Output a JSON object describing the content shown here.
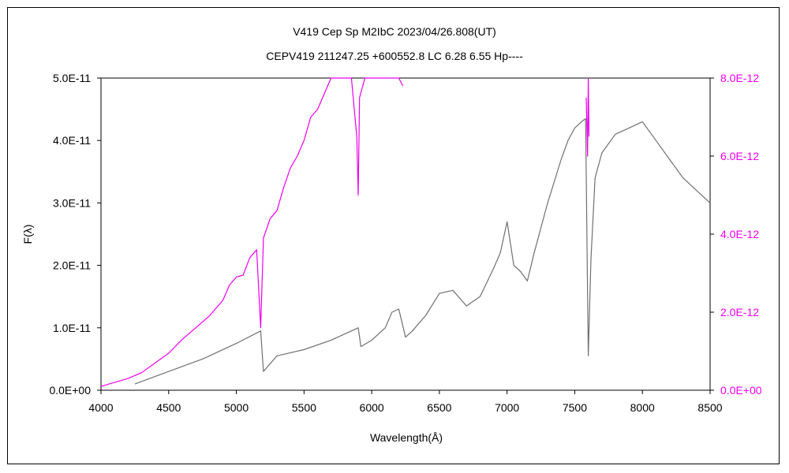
{
  "chart_data": {
    "type": "line",
    "title": "V419 Cep   Sp M2IbC   2023/04/26.808(UT)",
    "subtitle": "CEPV419 211247.25 +600552.8 LC 6.28 6.55 Hp----",
    "xlabel": "Wavelength(Å)",
    "ylabel": "F(λ)",
    "xlim": [
      4000,
      8500
    ],
    "ylim_left": [
      0,
      5e-11
    ],
    "ylim_right": [
      0,
      8e-12
    ],
    "x_ticks": [
      "4000",
      "4500",
      "5000",
      "5500",
      "6000",
      "6500",
      "7000",
      "7500",
      "8000",
      "8500"
    ],
    "y_left_ticks": [
      "0.0E+00",
      "1.0E-11",
      "2.0E-11",
      "3.0E-11",
      "4.0E-11",
      "5.0E-11"
    ],
    "y_right_ticks": [
      "0.0E+00",
      "2.0E-12",
      "4.0E-12",
      "6.0E-12",
      "8.0E-12"
    ],
    "grid": false,
    "legend": "none",
    "colors": {
      "series_left": "#707070",
      "series_right": "#ee00ee",
      "right_axis": "#ee00ee"
    },
    "series": [
      {
        "axis": "left",
        "color": "#707070",
        "x": [
          4250,
          4500,
          4750,
          5000,
          5180,
          5200,
          5300,
          5500,
          5700,
          5800,
          5900,
          5920,
          6000,
          6100,
          6150,
          6200,
          6250,
          6300,
          6400,
          6500,
          6600,
          6700,
          6800,
          6900,
          6950,
          7000,
          7050,
          7100,
          7150,
          7200,
          7300,
          7400,
          7450,
          7500,
          7550,
          7580,
          7600,
          7620,
          7650,
          7700,
          7800,
          7900,
          8000,
          8100,
          8200,
          8300,
          8400,
          8500
        ],
        "y": [
          1e-12,
          3e-12,
          5e-12,
          7.5e-12,
          9.5e-12,
          3e-12,
          5.5e-12,
          6.5e-12,
          8e-12,
          9e-12,
          1e-11,
          7e-12,
          8e-12,
          1e-11,
          1.25e-11,
          1.3e-11,
          8.5e-12,
          9.5e-12,
          1.2e-11,
          1.55e-11,
          1.6e-11,
          1.35e-11,
          1.5e-11,
          1.95e-11,
          2.2e-11,
          2.7e-11,
          2e-11,
          1.9e-11,
          1.75e-11,
          2.2e-11,
          3e-11,
          3.7e-11,
          4e-11,
          4.2e-11,
          4.3e-11,
          4.35e-11,
          5.5e-12,
          2.1e-11,
          3.4e-11,
          3.8e-11,
          4.1e-11,
          4.2e-11,
          4.3e-11,
          4e-11,
          3.7e-11,
          3.4e-11,
          3.2e-11,
          3e-11
        ]
      },
      {
        "axis": "right",
        "color": "#ee00ee",
        "x": [
          4000,
          4100,
          4200,
          4300,
          4400,
          4500,
          4600,
          4700,
          4800,
          4900,
          4950,
          5000,
          5050,
          5100,
          5150,
          5180,
          5200,
          5250,
          5300,
          5350,
          5400,
          5450,
          5500,
          5550,
          5600,
          5650,
          5700,
          5750,
          5800,
          5850,
          5890,
          5900,
          5910,
          5950,
          6000,
          6100,
          6200,
          6230
        ],
        "y": [
          1e-13,
          2e-13,
          3e-13,
          4.5e-13,
          7e-13,
          9.5e-13,
          1.3e-12,
          1.6e-12,
          1.9e-12,
          2.3e-12,
          2.7e-12,
          2.9e-12,
          2.95e-12,
          3.4e-12,
          3.6e-12,
          1.6e-12,
          3.9e-12,
          4.4e-12,
          4.6e-12,
          5.2e-12,
          5.7e-12,
          6e-12,
          6.4e-12,
          7e-12,
          7.2e-12,
          7.6e-12,
          8e-12,
          8e-12,
          8e-12,
          8e-12,
          6.5e-12,
          5e-12,
          7.5e-12,
          8e-12,
          8e-12,
          8e-12,
          8e-12,
          7.8e-12
        ]
      },
      {
        "axis": "right",
        "color": "#ee00ee",
        "x": [
          7585,
          7595,
          7600,
          7605
        ],
        "y": [
          7.5e-12,
          6e-12,
          8e-12,
          6.5e-12
        ]
      }
    ]
  }
}
